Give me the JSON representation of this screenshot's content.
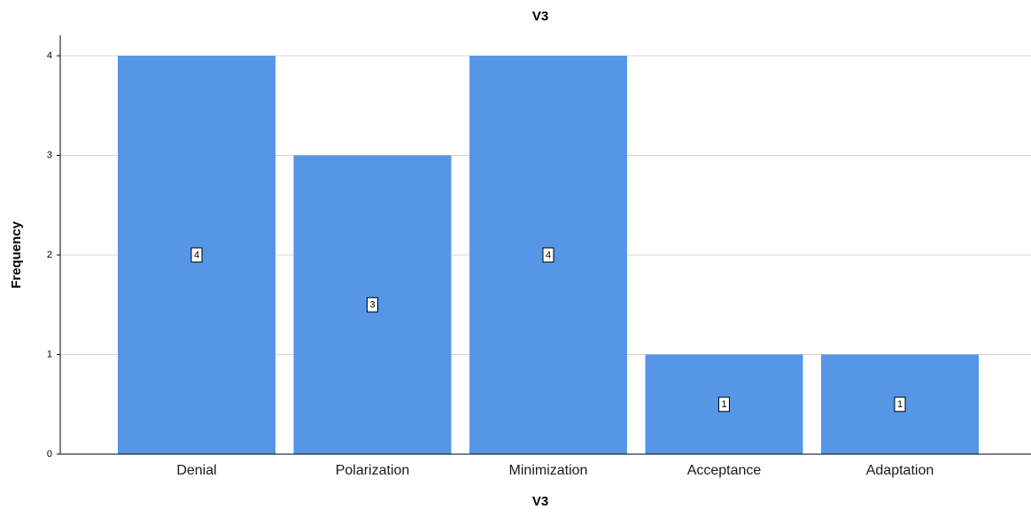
{
  "chart_data": {
    "type": "bar",
    "title": "V3",
    "xlabel": "V3",
    "ylabel": "Frequency",
    "categories": [
      "Denial",
      "Polarization",
      "Minimization",
      "Acceptance",
      "Adaptation"
    ],
    "values": [
      4,
      3,
      4,
      1,
      1
    ],
    "data_labels": [
      "4",
      "3",
      "4",
      "1",
      "1"
    ],
    "ylim": [
      0,
      4
    ],
    "yticks": [
      "0",
      "1",
      "2",
      "3",
      "4"
    ],
    "grid": true,
    "legend": "none",
    "colors": {
      "bar": "#5596e6",
      "grid": "#d4d4d4",
      "axis": "#000000",
      "background": "#ffffff"
    }
  }
}
